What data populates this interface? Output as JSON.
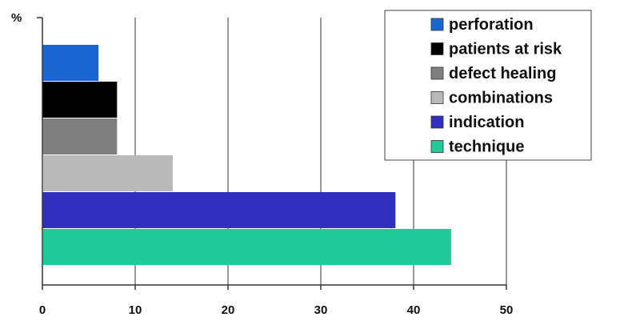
{
  "chart_data": {
    "type": "bar",
    "orientation": "horizontal",
    "unit_label": "%",
    "xlim": [
      0,
      50
    ],
    "x_ticks": [
      "0",
      "10",
      "20",
      "30",
      "40",
      "50"
    ],
    "grid": "vertical",
    "legend_position": "top-right",
    "categories": [
      "perforation",
      "patients at risk",
      "defect healing",
      "combinations",
      "indication",
      "technique"
    ],
    "values": [
      6,
      8,
      8,
      14,
      38,
      44
    ],
    "colors": [
      "#1a66d0",
      "#000000",
      "#7f7f7f",
      "#b9b9b9",
      "#3030c0",
      "#20c99a"
    ]
  }
}
